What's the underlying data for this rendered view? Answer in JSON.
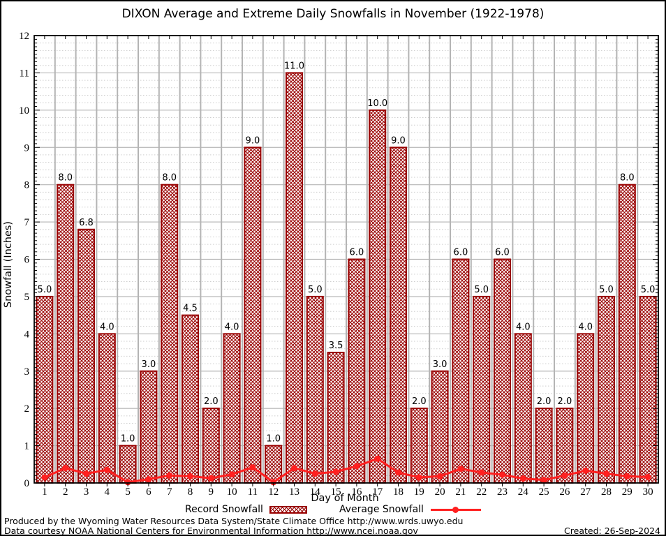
{
  "title": "DIXON Average and Extreme Daily Snowfalls in November (1922-1978)",
  "chart_data": {
    "type": "bar",
    "title": "DIXON Average and Extreme Daily Snowfalls in November (1922-1978)",
    "xlabel": "Day of Month",
    "ylabel": "Snowfall (Inches)",
    "ylim": [
      0,
      12
    ],
    "ytick_step": 1,
    "grid": true,
    "legend_position": "bottom",
    "categories": [
      "1",
      "2",
      "3",
      "4",
      "5",
      "6",
      "7",
      "8",
      "9",
      "10",
      "11",
      "12",
      "13",
      "14",
      "15",
      "16",
      "17",
      "18",
      "19",
      "20",
      "21",
      "22",
      "23",
      "24",
      "25",
      "26",
      "27",
      "28",
      "29",
      "30"
    ],
    "series": [
      {
        "name": "Record Snowfall",
        "type": "bar",
        "values": [
          5.0,
          8.0,
          6.8,
          4.0,
          1.0,
          3.0,
          8.0,
          4.5,
          2.0,
          4.0,
          9.0,
          1.0,
          11.0,
          5.0,
          3.5,
          6.0,
          10.0,
          9.0,
          2.0,
          3.0,
          6.0,
          5.0,
          6.0,
          4.0,
          2.0,
          2.0,
          4.0,
          5.0,
          8.0,
          5.0
        ],
        "labels": [
          "5.0",
          "8.0",
          "6.8",
          "4.0",
          "1.0",
          "3.0",
          "8.0",
          "4.5",
          "2.0",
          "4.0",
          "9.0",
          "1.0",
          "11.0",
          "5.0",
          "3.5",
          "6.0",
          "10.0",
          "9.0",
          "2.0",
          "3.0",
          "6.0",
          "5.0",
          "6.0",
          "4.0",
          "2.0",
          "2.0",
          "4.0",
          "5.0",
          "8.0",
          "5.0"
        ]
      },
      {
        "name": "Average Snowfall",
        "type": "line",
        "values": [
          0.15,
          0.4,
          0.25,
          0.35,
          0.02,
          0.1,
          0.2,
          0.18,
          0.13,
          0.23,
          0.42,
          0.02,
          0.4,
          0.25,
          0.3,
          0.45,
          0.65,
          0.28,
          0.15,
          0.18,
          0.38,
          0.28,
          0.22,
          0.12,
          0.08,
          0.2,
          0.33,
          0.25,
          0.18,
          0.16
        ]
      }
    ]
  },
  "legend": {
    "record_label": "Record Snowfall",
    "average_label": "Average Snowfall"
  },
  "footer": {
    "line1": "Produced by the Wyoming Water Resources Data System/State Climate Office http://www.wrds.uwyo.edu",
    "line2": "Data courtesy NOAA National Centers for Environmental Information http://www.ncei.noaa.gov",
    "created": "Created: 26-Sep-2024"
  },
  "colors": {
    "bar": "#990000",
    "line": "#ff2020",
    "grid_major": "#b4b4b4",
    "grid_minor": "#cdcdcd",
    "axis": "#000000"
  }
}
